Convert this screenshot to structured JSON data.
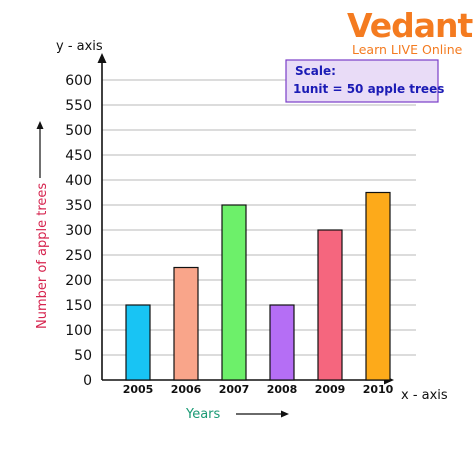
{
  "logo": {
    "name": "Vedantu",
    "tagline": "Learn LIVE Online"
  },
  "scale_box": {
    "title": "Scale:",
    "text": "1unit = 50 apple trees"
  },
  "y_axis_name": "y - axis",
  "x_axis_name": "x - axis",
  "chart_data": {
    "type": "bar",
    "title": "",
    "xlabel": "Years",
    "ylabel": "Number of apple trees",
    "categories": [
      "2005",
      "2006",
      "2007",
      "2008",
      "2009",
      "2010"
    ],
    "values": [
      150,
      225,
      350,
      150,
      300,
      375
    ],
    "colors": [
      "#18c4f4",
      "#f9a58a",
      "#6df06a",
      "#b56ef5",
      "#f5667e",
      "#fdaa1a"
    ],
    "ylim": [
      0,
      600
    ],
    "yticks": [
      0,
      50,
      100,
      150,
      200,
      250,
      300,
      350,
      400,
      450,
      500,
      550,
      600
    ],
    "grid": true,
    "grid_color": "#b8b8b8"
  }
}
